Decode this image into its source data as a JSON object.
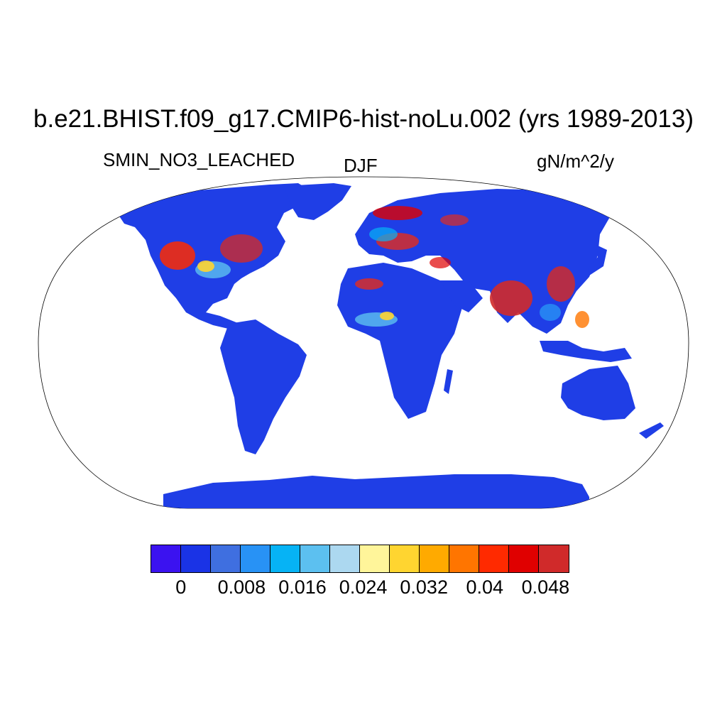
{
  "title": "b.e21.BHIST.f09_g17.CMIP6-hist-noLu.002 (yrs 1989-2013)",
  "variable": "SMIN_NO3_LEACHED",
  "season": "DJF",
  "units": "gN/m^2/y",
  "colors": {
    "ocean": "#ffffff",
    "land_base": "#1f3ee6",
    "outline": "#000000"
  },
  "colorbar": {
    "colors": [
      "#3b12f0",
      "#1a33e6",
      "#3f6fe0",
      "#2892f5",
      "#06b3f5",
      "#5cc0f0",
      "#acd8f0",
      "#fff59a",
      "#ffd530",
      "#ffaa00",
      "#ff7500",
      "#ff2a00",
      "#e00000",
      "#d02a2a"
    ],
    "tick_labels": [
      "0",
      "0.008",
      "0.016",
      "0.024",
      "0.032",
      "0.04",
      "0.048"
    ]
  }
}
